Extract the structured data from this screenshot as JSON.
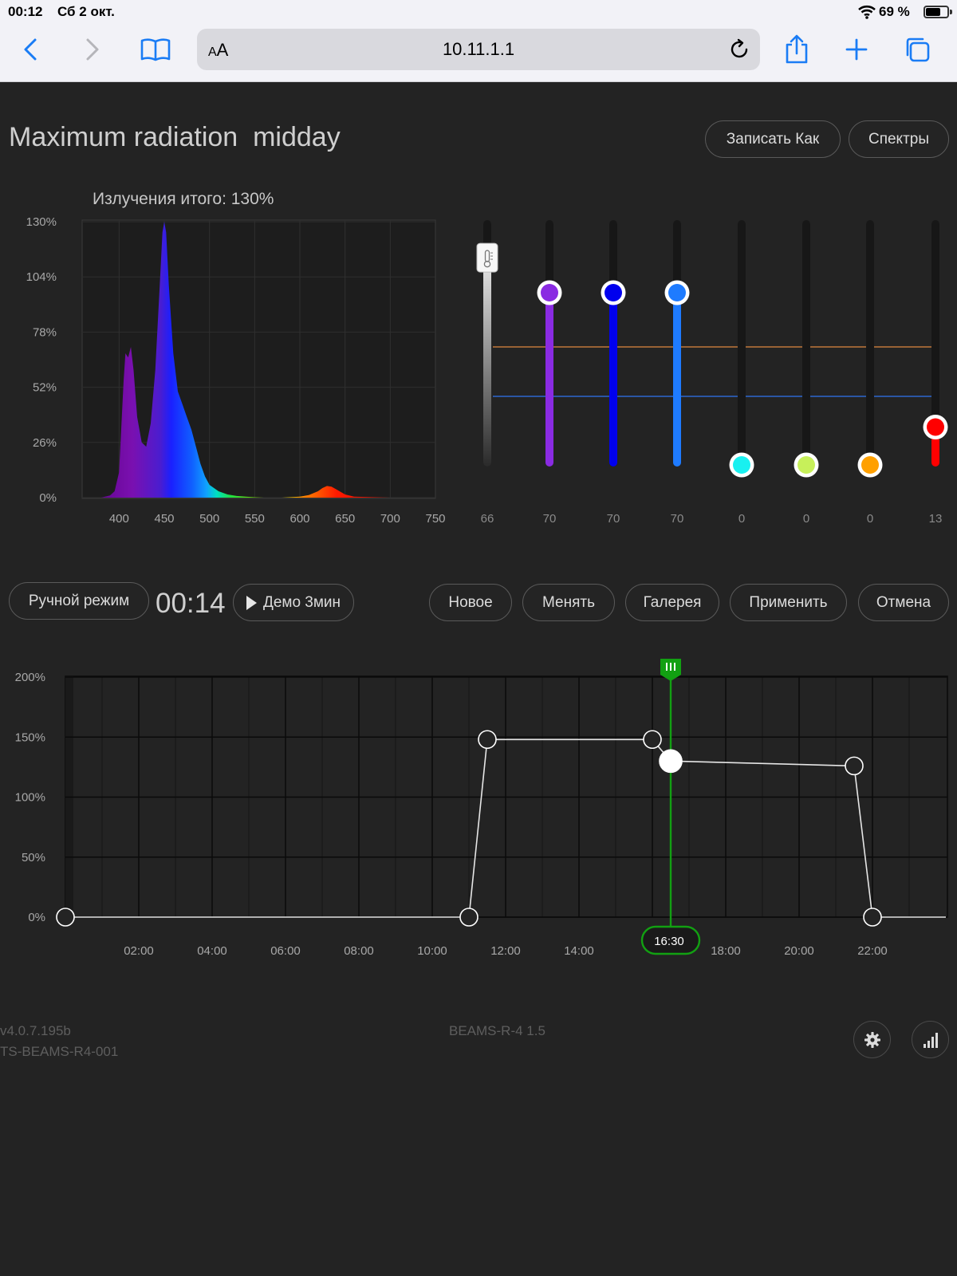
{
  "statusbar": {
    "time": "00:12",
    "date": "Сб 2 окт.",
    "battery_text": "69 %",
    "battery_level": 0.69
  },
  "browser": {
    "text_size_label_small": "A",
    "text_size_label_large": "A",
    "url": "10.11.1.1"
  },
  "page": {
    "title": "Maximum radiation  midday",
    "save_as_button": "Записать Как",
    "spectra_button": "Спектры"
  },
  "spectrum": {
    "title": "Излучения итого: 130%",
    "y_ticks": [
      "130%",
      "104%",
      "78%",
      "52%",
      "26%",
      "0%"
    ],
    "x_ticks": [
      "400",
      "450",
      "500",
      "550",
      "600",
      "650",
      "700",
      "750"
    ]
  },
  "channels": [
    {
      "name": "temperature",
      "value": "66",
      "level": 66,
      "color": "#ffffff",
      "icon": "thermometer-icon"
    },
    {
      "name": "violet",
      "value": "70",
      "level": 70,
      "color": "#8a2be2"
    },
    {
      "name": "blue",
      "value": "70",
      "level": 70,
      "color": "#0000ee"
    },
    {
      "name": "light-blue",
      "value": "70",
      "level": 70,
      "color": "#1e7bff"
    },
    {
      "name": "cyan",
      "value": "0",
      "level": 0,
      "color": "#19f0f0"
    },
    {
      "name": "lime",
      "value": "0",
      "level": 0,
      "color": "#c7f05a"
    },
    {
      "name": "amber",
      "value": "0",
      "level": 0,
      "color": "#ffa000"
    },
    {
      "name": "red",
      "value": "13",
      "level": 13,
      "color": "#ff0000"
    }
  ],
  "controls": {
    "manual_mode": "Ручной режим",
    "timer": "00:14",
    "demo": "Демо 3мин",
    "new": "Новое",
    "change": "Менять",
    "gallery": "Галерея",
    "apply": "Применить",
    "cancel": "Отмена"
  },
  "chart_data": [
    {
      "type": "area",
      "title": "Излучения итого: 130%",
      "xlabel": "",
      "ylabel": "",
      "x_range": [
        360,
        750
      ],
      "ylim": [
        0,
        130
      ],
      "x": [
        360,
        370,
        380,
        390,
        395,
        400,
        405,
        407,
        410,
        413,
        416,
        420,
        425,
        430,
        435,
        440,
        445,
        448,
        450,
        452,
        455,
        460,
        465,
        470,
        475,
        480,
        485,
        490,
        495,
        500,
        510,
        520,
        530,
        540,
        550,
        560,
        580,
        600,
        610,
        620,
        625,
        630,
        635,
        640,
        650,
        660,
        700,
        750
      ],
      "values": [
        0,
        0,
        0,
        1,
        3,
        12,
        55,
        68,
        66,
        71,
        60,
        38,
        26,
        24,
        35,
        60,
        100,
        125,
        130,
        125,
        100,
        68,
        50,
        44,
        38,
        32,
        24,
        16,
        10,
        6,
        3,
        1.5,
        0.8,
        0.5,
        0.2,
        0,
        0,
        0.5,
        1.2,
        3,
        4.5,
        5.5,
        5.2,
        4,
        1.5,
        0.5,
        0,
        0
      ]
    },
    {
      "type": "line",
      "title": "",
      "xlabel": "",
      "ylabel": "",
      "y_ticks": [
        "200%",
        "150%",
        "100%",
        "50%",
        "0%"
      ],
      "x_ticks": [
        "02:00",
        "04:00",
        "06:00",
        "08:00",
        "10:00",
        "12:00",
        "14:00",
        "18:00",
        "20:00",
        "22:00"
      ],
      "x_range": [
        0,
        24
      ],
      "ylim": [
        0,
        200
      ],
      "series": [
        {
          "x": [
            0,
            11.0,
            11.5,
            16.0,
            16.5,
            21.5,
            22.0,
            24
          ],
          "values": [
            0,
            0,
            148,
            148,
            130,
            126,
            0,
            0
          ]
        }
      ],
      "selected_point": 4,
      "cursor_time": "16:30",
      "cursor_x": 16.5
    }
  ],
  "footer": {
    "version": "v4.0.7.195b",
    "device_id": "TS-BEAMS-R4-001",
    "model": "BEAMS-R-4 1.5"
  }
}
